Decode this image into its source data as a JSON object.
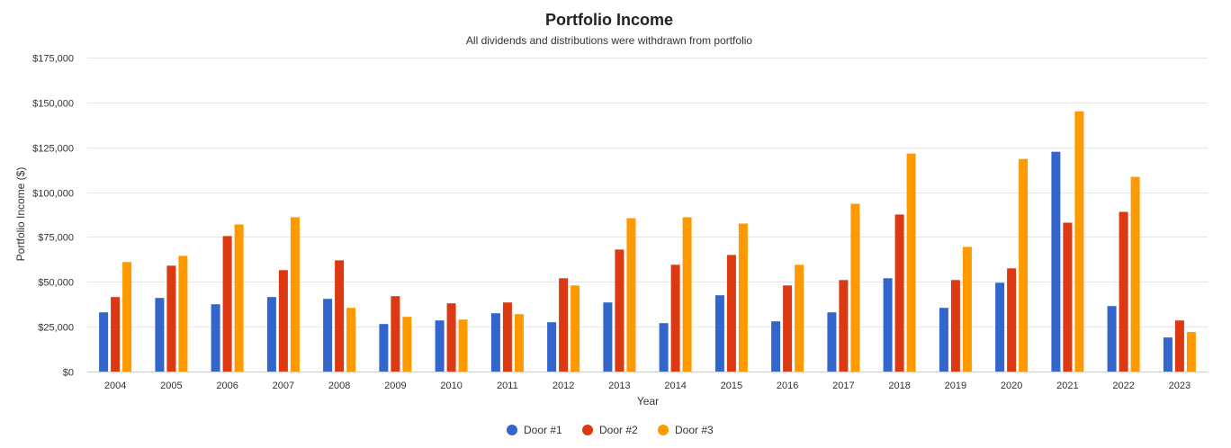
{
  "chart_data": {
    "type": "bar",
    "title": "Portfolio Income",
    "subtitle": "All dividends and distributions were withdrawn from portfolio",
    "xlabel": "Year",
    "ylabel": "Portfolio Income ($)",
    "ylim": [
      0,
      175000
    ],
    "yticks": [
      0,
      25000,
      50000,
      75000,
      100000,
      125000,
      150000,
      175000
    ],
    "ytick_labels": [
      "$0",
      "$25,000",
      "$50,000",
      "$75,000",
      "$100,000",
      "$125,000",
      "$150,000",
      "$175,000"
    ],
    "grid": true,
    "legend_position": "bottom-center",
    "categories": [
      "2004",
      "2005",
      "2006",
      "2007",
      "2008",
      "2009",
      "2010",
      "2011",
      "2012",
      "2013",
      "2014",
      "2015",
      "2016",
      "2017",
      "2018",
      "2019",
      "2020",
      "2021",
      "2022",
      "2023"
    ],
    "series": [
      {
        "name": "Door #1",
        "color": "#3366cc",
        "values": [
          33000,
          41000,
          37500,
          41500,
          40500,
          26500,
          28500,
          32500,
          27500,
          38500,
          27000,
          42500,
          28000,
          33000,
          52000,
          35500,
          49500,
          122500,
          36500,
          19000
        ]
      },
      {
        "name": "Door #2",
        "color": "#dc3912",
        "values": [
          41500,
          59000,
          75500,
          56500,
          62000,
          42000,
          38000,
          38500,
          52000,
          68000,
          59500,
          65000,
          48000,
          51000,
          87500,
          51000,
          57500,
          83000,
          89000,
          28500
        ]
      },
      {
        "name": "Door #3",
        "color": "#ff9900",
        "values": [
          61000,
          64500,
          82000,
          86000,
          35500,
          30500,
          29000,
          32000,
          48000,
          85500,
          86000,
          82500,
          59500,
          93500,
          121500,
          69500,
          118500,
          145000,
          108500,
          22000
        ]
      }
    ]
  }
}
